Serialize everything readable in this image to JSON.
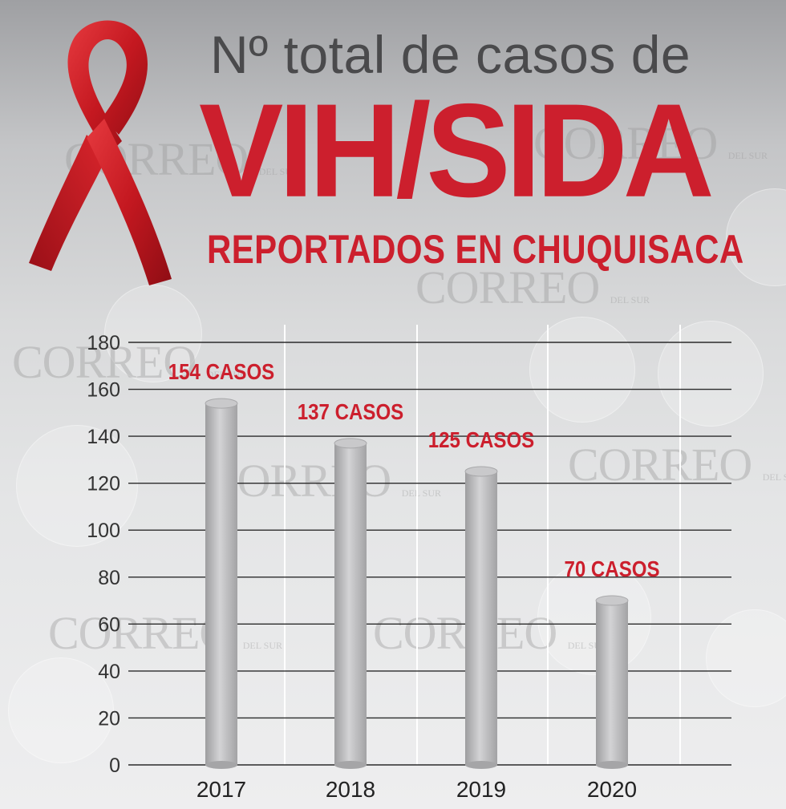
{
  "header": {
    "line1": "Nº total de casos de",
    "line2": "VIH/SIDA",
    "line3": "REPORTADOS EN CHUQUISACA"
  },
  "watermark": {
    "main": "CORREO",
    "sub": "DEL SUR"
  },
  "colors": {
    "accent": "#cc1f2d",
    "bar": "#b9b9bb",
    "text": "#4a4a4c"
  },
  "icons": {
    "ribbon": "red-awareness-ribbon-icon"
  },
  "chart_data": {
    "type": "bar",
    "categories": [
      "2017",
      "2018",
      "2019",
      "2020"
    ],
    "values": [
      154,
      137,
      125,
      70
    ],
    "data_labels": [
      "154 CASOS",
      "137 CASOS",
      "125 CASOS",
      "70 CASOS"
    ],
    "yticks": [
      0,
      20,
      40,
      60,
      80,
      100,
      120,
      140,
      160,
      180
    ],
    "ylim": [
      0,
      180
    ],
    "grid": true,
    "legend": "none"
  }
}
